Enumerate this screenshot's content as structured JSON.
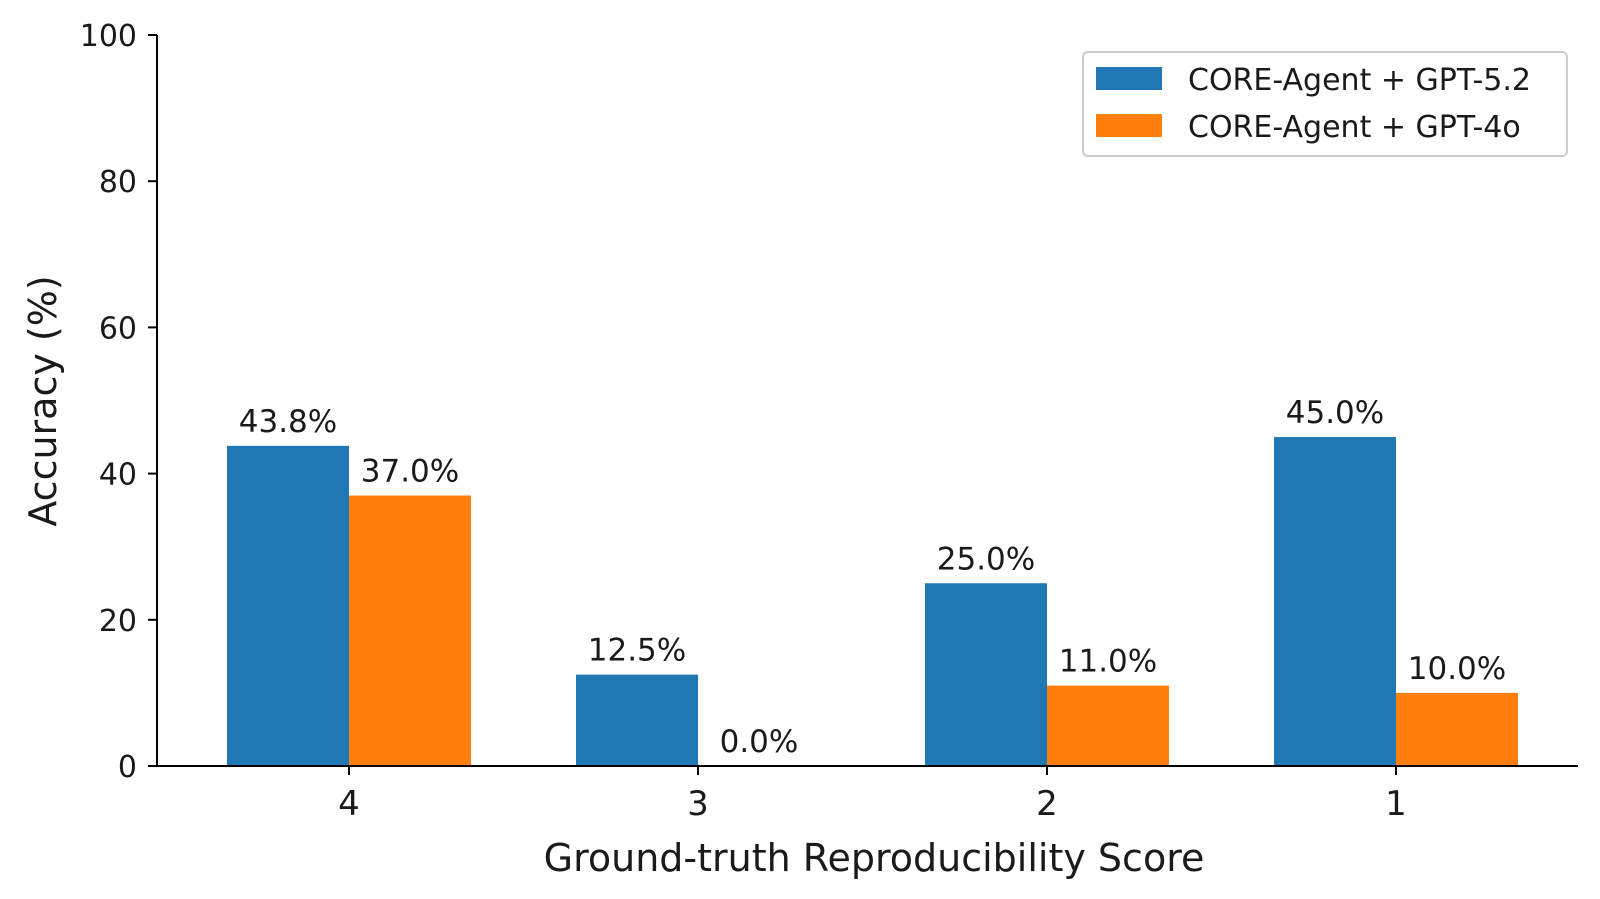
{
  "chart_data": {
    "type": "bar",
    "title": "",
    "xlabel": "Ground-truth Reproducibility Score",
    "ylabel": "Accuracy (%)",
    "categories": [
      "4",
      "3",
      "2",
      "1"
    ],
    "ylim": [
      0,
      100
    ],
    "yticks": [
      "0",
      "20",
      "40",
      "60",
      "80",
      "100"
    ],
    "grid": false,
    "legend_position": "top-right",
    "series": [
      {
        "name": "CORE-Agent + GPT-5.2",
        "color": "#1f77b4",
        "values": [
          43.8,
          12.5,
          25.0,
          45.0
        ],
        "labels": [
          "43.8%",
          "12.5%",
          "25.0%",
          "45.0%"
        ]
      },
      {
        "name": "CORE-Agent + GPT-4o",
        "color": "#ff7f0e",
        "values": [
          37.0,
          0.0,
          11.0,
          10.0
        ],
        "labels": [
          "37.0%",
          "0.0%",
          "11.0%",
          "10.0%"
        ]
      }
    ]
  }
}
